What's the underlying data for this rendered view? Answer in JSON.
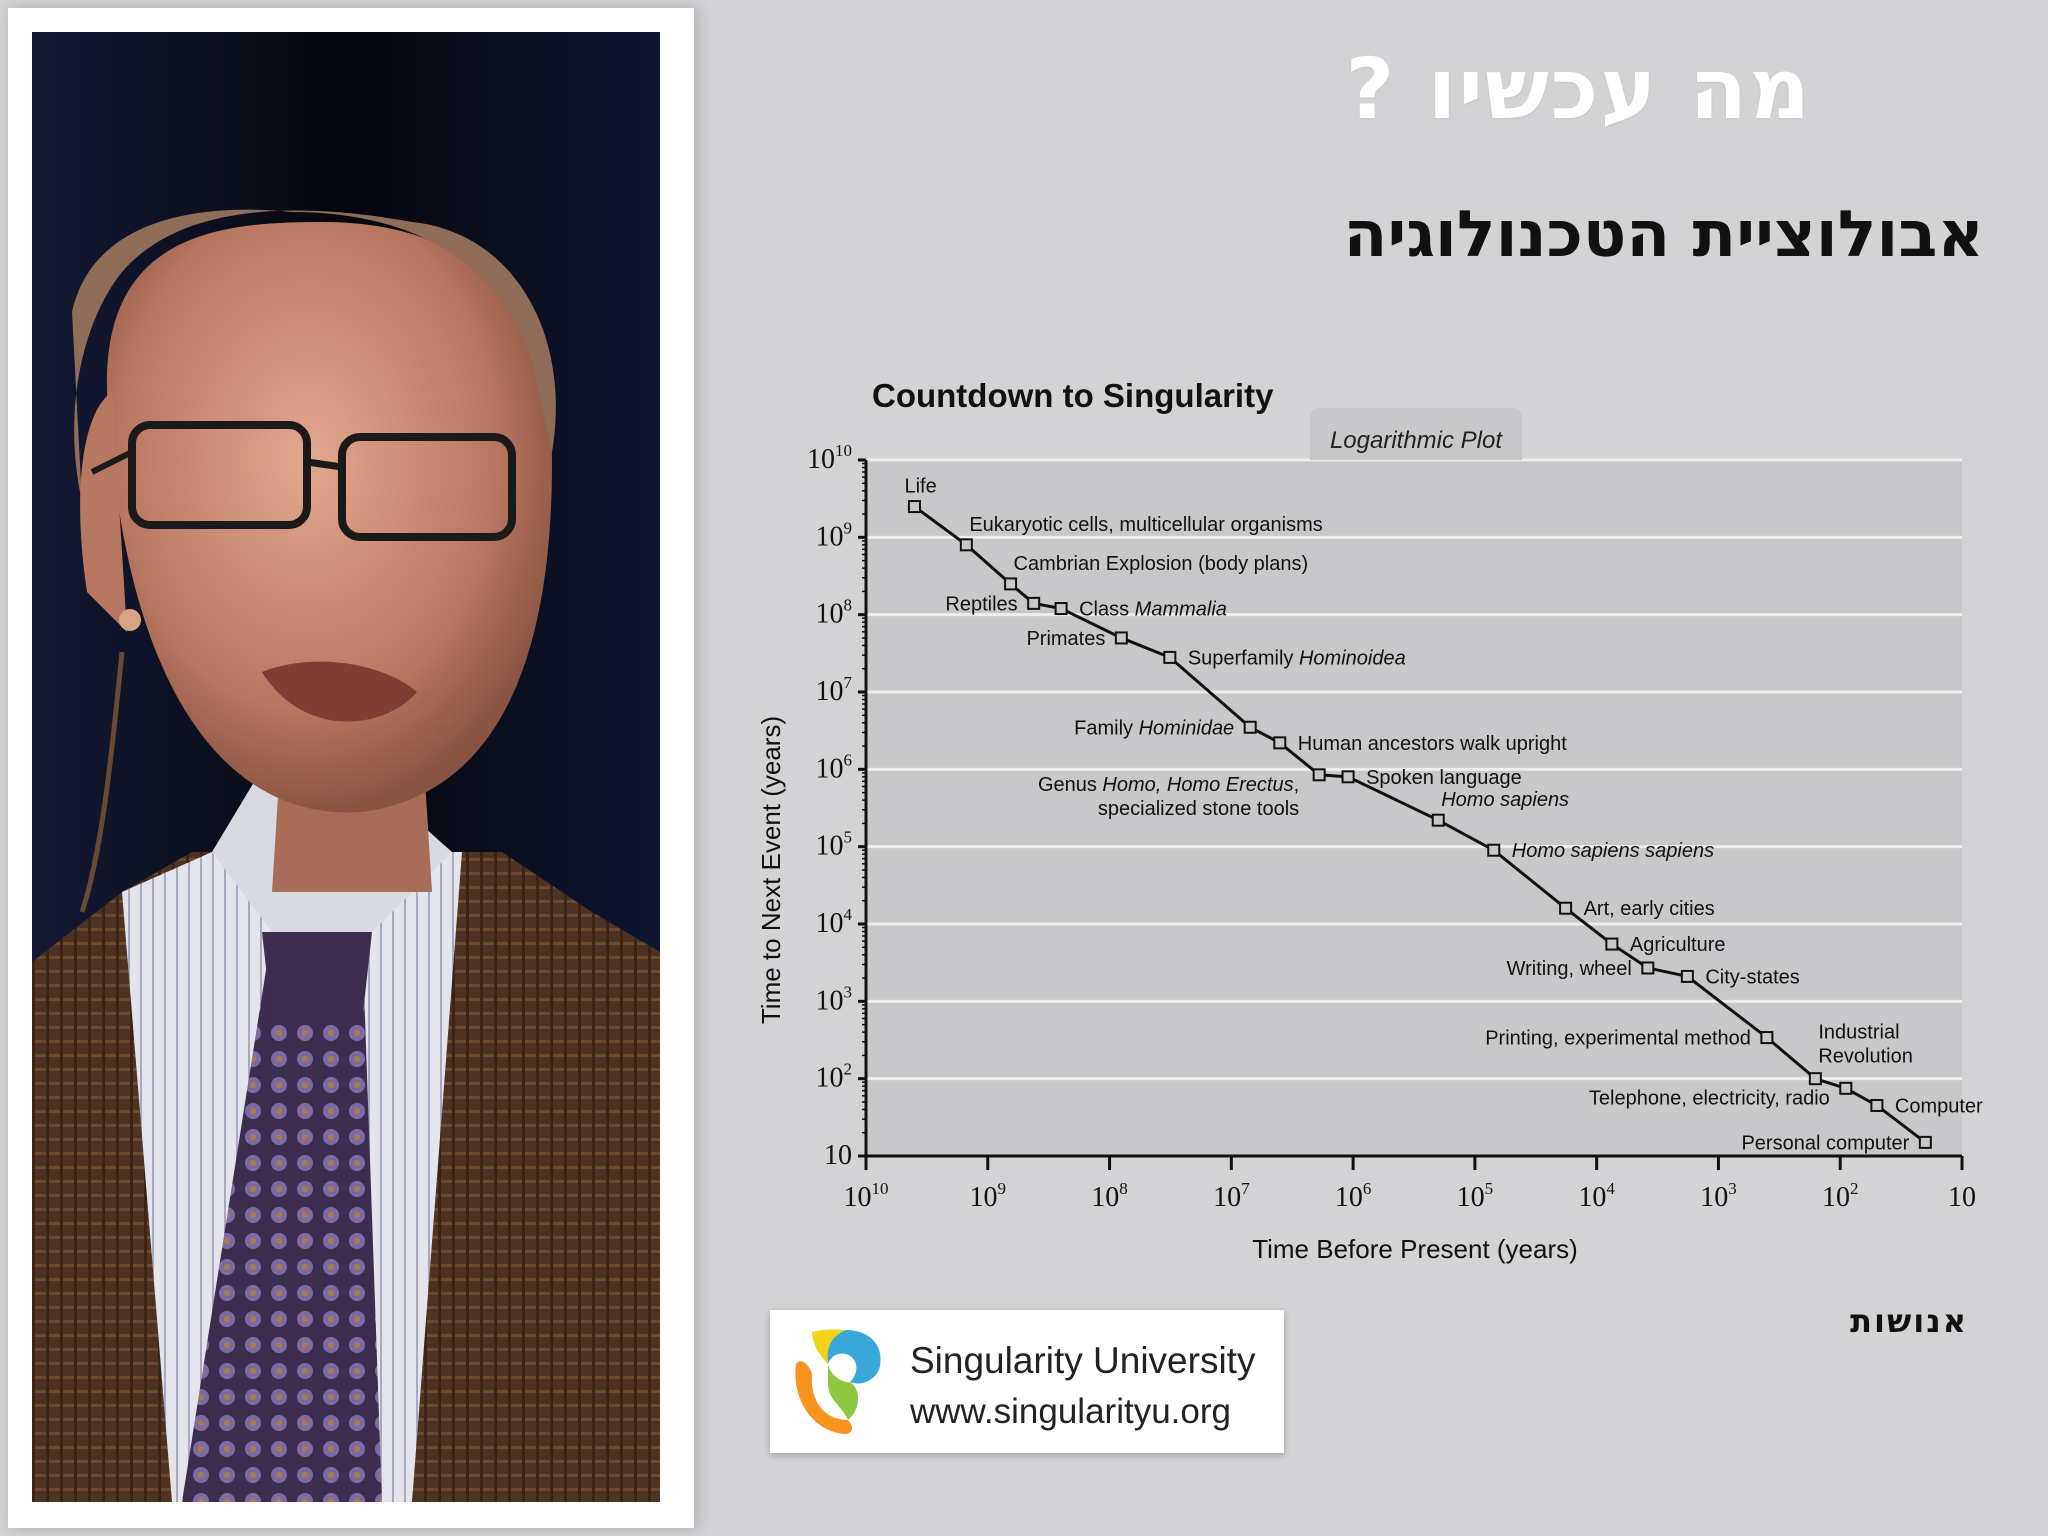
{
  "slide": {
    "title": "מה עכשיו ?",
    "subtitle": "אבולוציית הטכנולוגיה",
    "brand": "אנושות"
  },
  "logo": {
    "name": "Singularity University",
    "url": "www.singularityu.org"
  },
  "colors": {
    "background": "#d3d3d5",
    "plot_area": "#c8c8ca",
    "line": "#111111",
    "logo_blue": "#3aa7d9",
    "logo_green": "#8dc63f",
    "logo_orange": "#f7931e"
  },
  "chart_data": {
    "type": "scatter",
    "title": "Countdown to Singularity",
    "annotation": "Logarithmic Plot",
    "xlabel": "Time Before Present (years)",
    "ylabel": "Time to Next Event (years)",
    "x_scale": "log",
    "y_scale": "log",
    "x_reversed": true,
    "xlim": [
      10000000000,
      10
    ],
    "ylim": [
      10,
      10000000000
    ],
    "x_ticks": [
      {
        "base": "10",
        "exp": "10"
      },
      {
        "base": "10",
        "exp": "9"
      },
      {
        "base": "10",
        "exp": "8"
      },
      {
        "base": "10",
        "exp": "7"
      },
      {
        "base": "10",
        "exp": "6"
      },
      {
        "base": "10",
        "exp": "5"
      },
      {
        "base": "10",
        "exp": "4"
      },
      {
        "base": "10",
        "exp": "3"
      },
      {
        "base": "10",
        "exp": "2"
      },
      {
        "base": "10",
        "exp": ""
      }
    ],
    "y_ticks": [
      {
        "base": "10",
        "exp": "10"
      },
      {
        "base": "10",
        "exp": "9"
      },
      {
        "base": "10",
        "exp": "8"
      },
      {
        "base": "10",
        "exp": "7"
      },
      {
        "base": "10",
        "exp": "6"
      },
      {
        "base": "10",
        "exp": "5"
      },
      {
        "base": "10",
        "exp": "4"
      },
      {
        "base": "10",
        "exp": "3"
      },
      {
        "base": "10",
        "exp": "2"
      },
      {
        "base": "10",
        "exp": ""
      }
    ],
    "grid": true,
    "connected": true,
    "points": [
      {
        "label": [
          "Life"
        ],
        "x": 4000000000,
        "y": 2500000000,
        "label_pos": "above"
      },
      {
        "label": [
          "Eukaryotic cells, multicellular organisms"
        ],
        "x": 1500000000,
        "y": 800000000,
        "label_pos": "above-right"
      },
      {
        "label": [
          "Cambrian Explosion (body plans)"
        ],
        "x": 650000000,
        "y": 250000000,
        "label_pos": "above-right"
      },
      {
        "label": [
          "Reptiles"
        ],
        "x": 420000000,
        "y": 140000000,
        "label_pos": "left"
      },
      {
        "label": [
          "Class ",
          {
            "i": "Mammalia"
          }
        ],
        "x": 250000000,
        "y": 120000000,
        "label_pos": "right"
      },
      {
        "label": [
          "Primates"
        ],
        "x": 80000000,
        "y": 50000000,
        "label_pos": "left"
      },
      {
        "label": [
          "Superfamily ",
          {
            "i": "Hominoidea"
          }
        ],
        "x": 32000000,
        "y": 28000000,
        "label_pos": "right"
      },
      {
        "label": [
          "Family ",
          {
            "i": "Hominidae"
          }
        ],
        "x": 7000000,
        "y": 3500000,
        "label_pos": "left"
      },
      {
        "label": [
          "Human ancestors walk upright"
        ],
        "x": 4000000,
        "y": 2200000,
        "label_pos": "right"
      },
      {
        "label": [
          "Genus ",
          {
            "i": "Homo, Homo Erectus"
          },
          ","
        ],
        "label2": [
          "specialized stone tools"
        ],
        "x": 1900000,
        "y": 850000,
        "label_pos": "below-left"
      },
      {
        "label": [
          "Spoken language"
        ],
        "x": 1100000,
        "y": 800000,
        "label_pos": "right"
      },
      {
        "label": [
          {
            "i": "Homo sapiens"
          }
        ],
        "x": 200000,
        "y": 220000,
        "label_pos": "above-right"
      },
      {
        "label": [
          {
            "i": "Homo sapiens sapiens"
          }
        ],
        "x": 70000,
        "y": 90000,
        "label_pos": "right"
      },
      {
        "label": [
          "Art, early cities"
        ],
        "x": 18000,
        "y": 16000,
        "label_pos": "right"
      },
      {
        "label": [
          "Agriculture"
        ],
        "x": 7500,
        "y": 5500,
        "label_pos": "right"
      },
      {
        "label": [
          "Writing, wheel"
        ],
        "x": 3800,
        "y": 2700,
        "label_pos": "left"
      },
      {
        "label": [
          "City-states"
        ],
        "x": 1800,
        "y": 2100,
        "label_pos": "right"
      },
      {
        "label": [
          "Printing, experimental method"
        ],
        "x": 400,
        "y": 340,
        "label_pos": "left"
      },
      {
        "label": [
          "Industrial"
        ],
        "label2": [
          "Revolution"
        ],
        "x": 160,
        "y": 100,
        "label_pos": "above-right"
      },
      {
        "label": [
          "Telephone,  electricity, radio"
        ],
        "x": 90,
        "y": 75,
        "label_pos": "below-left"
      },
      {
        "label": [
          "Computer"
        ],
        "x": 50,
        "y": 45,
        "label_pos": "right"
      },
      {
        "label": [
          "Personal computer"
        ],
        "x": 20,
        "y": 15,
        "label_pos": "left"
      }
    ]
  }
}
